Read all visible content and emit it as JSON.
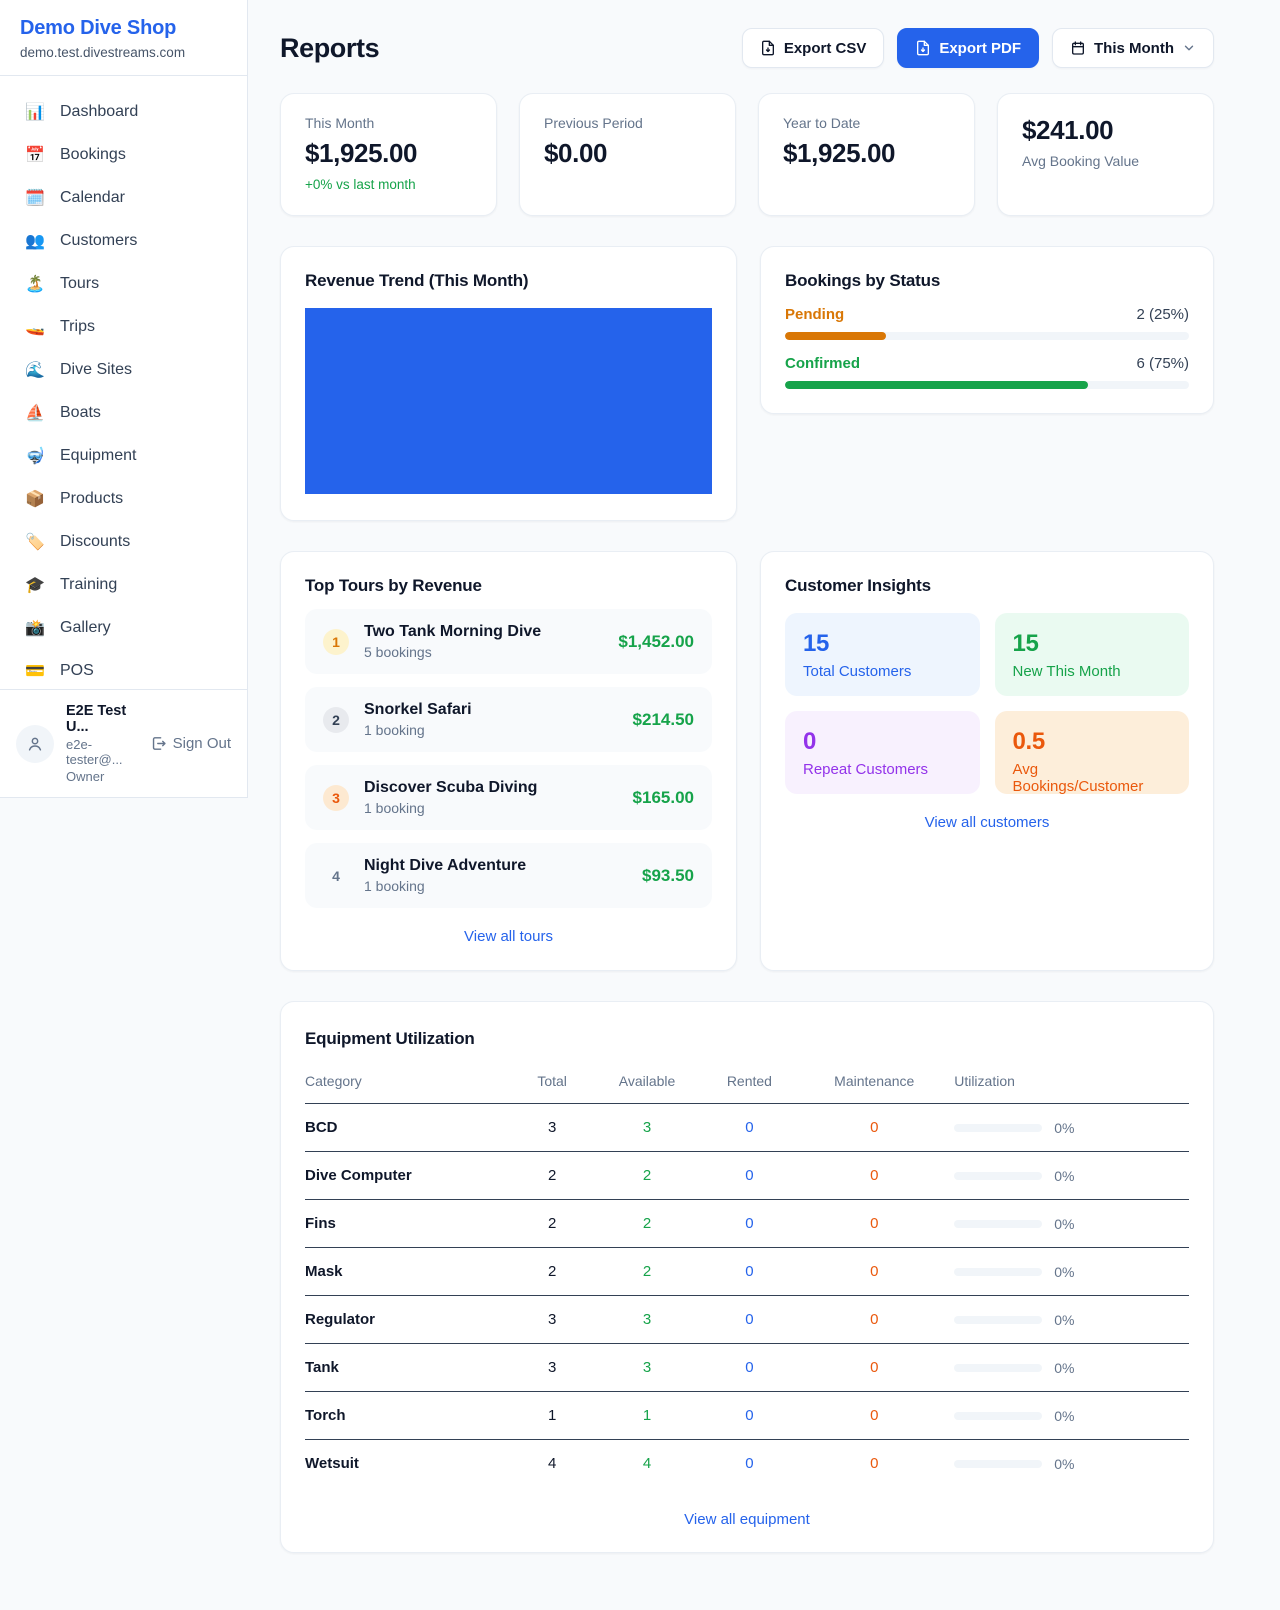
{
  "sidebar": {
    "brand": "Demo Dive Shop",
    "domain": "demo.test.divestreams.com",
    "items": [
      {
        "label": "Dashboard",
        "icon": "📊"
      },
      {
        "label": "Bookings",
        "icon": "📅"
      },
      {
        "label": "Calendar",
        "icon": "🗓️"
      },
      {
        "label": "Customers",
        "icon": "👥"
      },
      {
        "label": "Tours",
        "icon": "🏝️"
      },
      {
        "label": "Trips",
        "icon": "🚤"
      },
      {
        "label": "Dive Sites",
        "icon": "🌊"
      },
      {
        "label": "Boats",
        "icon": "⛵"
      },
      {
        "label": "Equipment",
        "icon": "🤿"
      },
      {
        "label": "Products",
        "icon": "📦"
      },
      {
        "label": "Discounts",
        "icon": "🏷️"
      },
      {
        "label": "Training",
        "icon": "🎓"
      },
      {
        "label": "Gallery",
        "icon": "📸"
      },
      {
        "label": "POS",
        "icon": "💳"
      }
    ],
    "user": {
      "name": "E2E Test U...",
      "email": "e2e-tester@...",
      "role": "Owner",
      "sign_out": "Sign Out"
    }
  },
  "header": {
    "title": "Reports",
    "export_csv": "Export CSV",
    "export_pdf": "Export PDF",
    "period": "This Month"
  },
  "stats": {
    "cards": [
      {
        "label": "This Month",
        "value": "$1,925.00",
        "delta": "+0% vs last month"
      },
      {
        "label": "Previous Period",
        "value": "$0.00"
      },
      {
        "label": "Year to Date",
        "value": "$1,925.00"
      },
      {
        "label": "Avg Booking Value",
        "value": "$241.00"
      }
    ]
  },
  "revenue_trend": {
    "title": "Revenue Trend (This Month)",
    "fill_color": "#2563eb",
    "note": "solid filled area chart, no visible axes or labels"
  },
  "bookings_status": {
    "title": "Bookings by Status",
    "rows": [
      {
        "label": "Pending",
        "value": "2 (25%)",
        "pct": 25,
        "color": "#d97706"
      },
      {
        "label": "Confirmed",
        "value": "6 (75%)",
        "pct": 75,
        "color": "#16a34a"
      }
    ]
  },
  "top_tours": {
    "title": "Top Tours by Revenue",
    "rows": [
      {
        "rank": "1",
        "name": "Two Tank Morning Dive",
        "bookings": "5 bookings",
        "amount": "$1,452.00"
      },
      {
        "rank": "2",
        "name": "Snorkel Safari",
        "bookings": "1 booking",
        "amount": "$214.50"
      },
      {
        "rank": "3",
        "name": "Discover Scuba Diving",
        "bookings": "1 booking",
        "amount": "$165.00"
      },
      {
        "rank": "4",
        "name": "Night Dive Adventure",
        "bookings": "1 booking",
        "amount": "$93.50"
      }
    ],
    "view_all": "View all tours"
  },
  "customer_insights": {
    "title": "Customer Insights",
    "tiles": [
      {
        "value": "15",
        "label": "Total Customers",
        "color": "#2563eb",
        "bg": "#eef5fe"
      },
      {
        "value": "15",
        "label": "New This Month",
        "color": "#16a34a",
        "bg": "#eafaf1"
      },
      {
        "value": "0",
        "label": "Repeat Customers",
        "color": "#9333ea",
        "bg": "#f8f1fe"
      },
      {
        "value": "0.5",
        "label": "Avg Bookings/Customer",
        "color": "#ea580c",
        "bg": "#fdeeda"
      }
    ],
    "view_all": "View all customers"
  },
  "equipment": {
    "title": "Equipment Utilization",
    "columns": {
      "category": "Category",
      "total": "Total",
      "available": "Available",
      "rented": "Rented",
      "maintenance": "Maintenance",
      "utilization": "Utilization"
    },
    "rows": [
      {
        "category": "BCD",
        "total": "3",
        "available": "3",
        "rented": "0",
        "maintenance": "0",
        "utilization": "0%",
        "utilization_pct": 0
      },
      {
        "category": "Dive Computer",
        "total": "2",
        "available": "2",
        "rented": "0",
        "maintenance": "0",
        "utilization": "0%",
        "utilization_pct": 0
      },
      {
        "category": "Fins",
        "total": "2",
        "available": "2",
        "rented": "0",
        "maintenance": "0",
        "utilization": "0%",
        "utilization_pct": 0
      },
      {
        "category": "Mask",
        "total": "2",
        "available": "2",
        "rented": "0",
        "maintenance": "0",
        "utilization": "0%",
        "utilization_pct": 0
      },
      {
        "category": "Regulator",
        "total": "3",
        "available": "3",
        "rented": "0",
        "maintenance": "0",
        "utilization": "0%",
        "utilization_pct": 0
      },
      {
        "category": "Tank",
        "total": "3",
        "available": "3",
        "rented": "0",
        "maintenance": "0",
        "utilization": "0%",
        "utilization_pct": 0
      },
      {
        "category": "Torch",
        "total": "1",
        "available": "1",
        "rented": "0",
        "maintenance": "0",
        "utilization": "0%",
        "utilization_pct": 0
      },
      {
        "category": "Wetsuit",
        "total": "4",
        "available": "4",
        "rented": "0",
        "maintenance": "0",
        "utilization": "0%",
        "utilization_pct": 0
      }
    ],
    "view_all": "View all equipment"
  }
}
